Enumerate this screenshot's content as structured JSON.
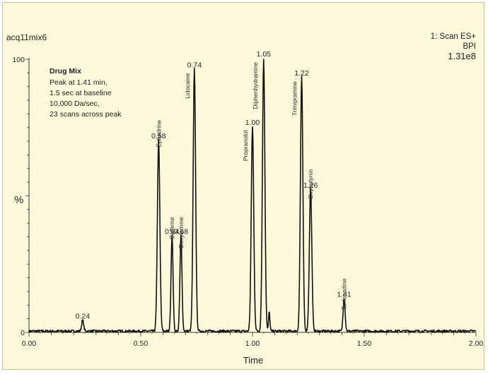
{
  "chart_data": {
    "type": "line",
    "title": "acq11mix6",
    "scan_info": [
      "1: Scan ES+",
      "BPI",
      "1.31e8"
    ],
    "annotation": {
      "title": "Drug Mix",
      "lines": [
        "Peak at 1.41 min,",
        "1.5 sec at baseline",
        "10,000 Da/sec,",
        "23 scans across peak"
      ]
    },
    "xlabel": "Time",
    "ylabel": "%",
    "xlim": [
      0.0,
      2.0
    ],
    "ylim": [
      0,
      100
    ],
    "x_ticks": [
      "0.00",
      "0.50",
      "1.00",
      "1.50",
      "2.00"
    ],
    "x_tick_values": [
      0.0,
      0.5,
      1.0,
      1.5,
      2.0
    ],
    "y_ticks": [
      "0",
      "100"
    ],
    "y_tick_values": [
      0,
      100
    ],
    "series": [
      {
        "values": [
          {
            "x": 0.24,
            "y": 4
          },
          {
            "x": 0.58,
            "y": 70
          },
          {
            "x": 0.64,
            "y": 35
          },
          {
            "x": 0.68,
            "y": 35
          },
          {
            "x": 0.74,
            "y": 96
          },
          {
            "x": 1.0,
            "y": 75
          },
          {
            "x": 1.05,
            "y": 100
          },
          {
            "x": 1.22,
            "y": 93
          },
          {
            "x": 1.26,
            "y": 52
          },
          {
            "x": 1.41,
            "y": 12
          }
        ]
      }
    ],
    "peaks": [
      {
        "time": 0.24,
        "height": 4,
        "time_label": "0.24",
        "compound": ""
      },
      {
        "time": 0.58,
        "height": 70,
        "time_label": "0.58",
        "compound": "Ephedrine"
      },
      {
        "time": 0.64,
        "height": 35,
        "time_label": "0.64",
        "compound": "Caffeine"
      },
      {
        "time": 0.68,
        "height": 35,
        "time_label": "0.68",
        "compound": "Doxylamine"
      },
      {
        "time": 0.74,
        "height": 96,
        "time_label": "0.74",
        "compound": "Lidocaine"
      },
      {
        "time": 1.0,
        "height": 75,
        "time_label": "1.00",
        "compound": "Propranolol"
      },
      {
        "time": 1.05,
        "height": 100,
        "time_label": "1.05",
        "compound": "Diphenhydramine"
      },
      {
        "time": 1.22,
        "height": 93,
        "time_label": "1.22",
        "compound": "Trimipramine"
      },
      {
        "time": 1.26,
        "height": 52,
        "time_label": "1.26",
        "compound": "Oxybutynin"
      },
      {
        "time": 1.41,
        "height": 12,
        "time_label": "1.41",
        "compound": "Terfenadine"
      }
    ],
    "grid": false,
    "colors": {
      "background": "#fdf9db",
      "line": "#111111"
    }
  }
}
